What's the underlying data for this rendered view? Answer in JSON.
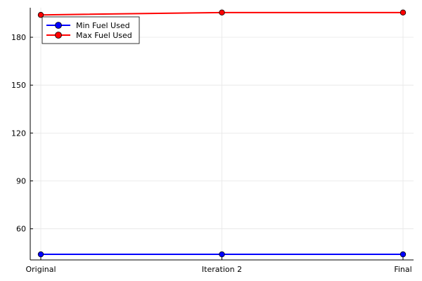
{
  "chart_data": {
    "type": "line",
    "title": "",
    "xlabel": "",
    "ylabel": "",
    "categories": [
      "Original",
      "Iteration 2",
      "Final"
    ],
    "ylim": [
      40.5,
      198.5
    ],
    "yticks": [
      60,
      90,
      120,
      150,
      180
    ],
    "yticks_labels": [
      "60",
      "90",
      "120",
      "150",
      "180"
    ],
    "grid": true,
    "legend_position": "top-left",
    "series": [
      {
        "name": "Min Fuel Used",
        "color": "#0000ff",
        "values": [
          44,
          44,
          44
        ]
      },
      {
        "name": "Max Fuel Used",
        "color": "#ff0000",
        "values": [
          194,
          195.5,
          195.5
        ]
      }
    ]
  }
}
